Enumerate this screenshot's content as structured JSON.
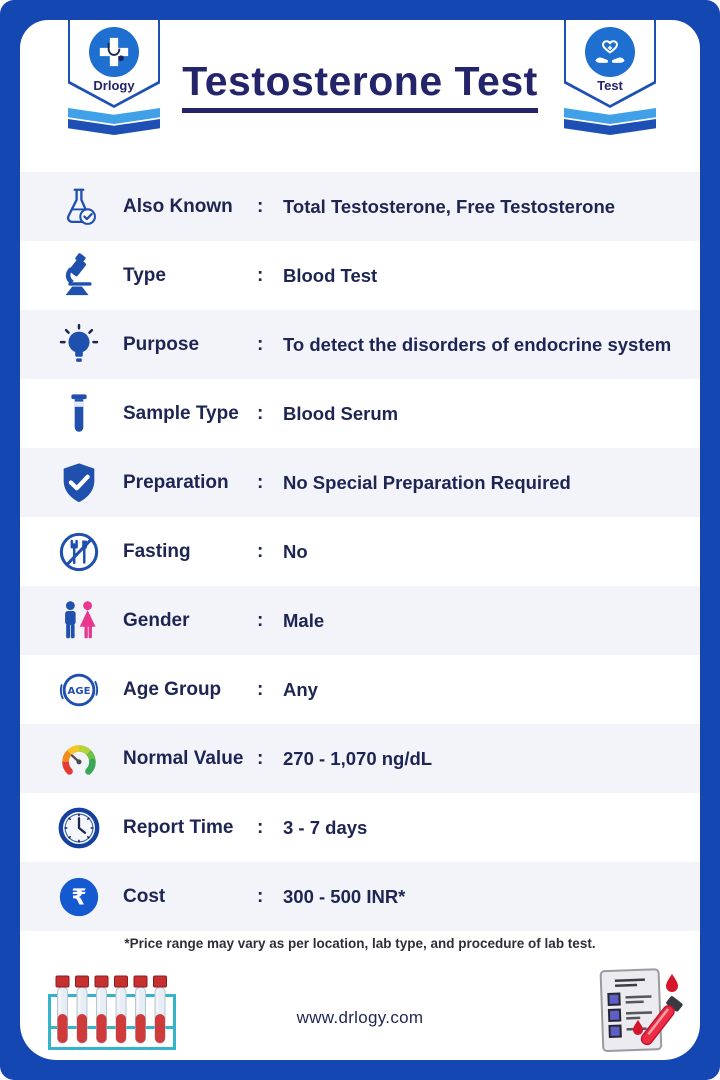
{
  "header": {
    "title": "Testosterone Test",
    "left_badge": {
      "label": "Drlogy",
      "icon": "drlogy"
    },
    "right_badge": {
      "label": "Test",
      "icon": "hands-heart"
    }
  },
  "separator": ":",
  "rows": [
    {
      "icon": "flask-check",
      "label": "Also Known",
      "value": "Total Testosterone, Free Testosterone"
    },
    {
      "icon": "microscope",
      "label": "Type",
      "value": "Blood Test"
    },
    {
      "icon": "lightbulb",
      "label": "Purpose",
      "value": "To detect the disorders of endocrine system"
    },
    {
      "icon": "test-tube",
      "label": "Sample Type",
      "value": "Blood Serum"
    },
    {
      "icon": "shield-check",
      "label": "Preparation",
      "value": "No Special Preparation Required"
    },
    {
      "icon": "no-food",
      "label": "Fasting",
      "value": "No"
    },
    {
      "icon": "gender",
      "label": "Gender",
      "value": "Male"
    },
    {
      "icon": "age-circle",
      "label": "Age Group",
      "value": "Any"
    },
    {
      "icon": "gauge",
      "label": "Normal Value",
      "value": "270 - 1,070 ng/dL"
    },
    {
      "icon": "clock",
      "label": "Report Time",
      "value": "3 - 7 days"
    },
    {
      "icon": "rupee",
      "label": "Cost",
      "value": "300 - 500 INR*"
    }
  ],
  "footnote": "*Price range may vary as per location, lab type, and procedure of lab test.",
  "footer": {
    "website": "www.drlogy.com",
    "left_illustration": "test-tube-rack",
    "right_illustration": "blood-test-checklist"
  },
  "age_icon_text": "AGE",
  "rupee_symbol": "₹",
  "colors": {
    "frame_blue": "#1547b2",
    "badge_blue": "#1d4fb5",
    "chevron_light": "#41a1e8",
    "circle_blue": "#1e6fd0",
    "rupee_blue": "#1459cf",
    "title_navy": "#24246a",
    "text_navy": "#1e2553",
    "icon_blue": "#2050ae",
    "row_alt": "#f3f4fa",
    "pink": "#e8378f",
    "footnote_gray": "#2e2e38",
    "red": "#d6152c",
    "cap_red": "#c53030",
    "liquid_red": "#cf3b3b",
    "teal": "#35b4c9",
    "clock_ring": "#16409e",
    "gauge1": "#e23c33",
    "gauge2": "#f08c1f",
    "gauge3": "#f7c52a",
    "gauge4": "#b5d33a",
    "gauge5": "#6fbf44",
    "gauge6": "#3ba857"
  }
}
